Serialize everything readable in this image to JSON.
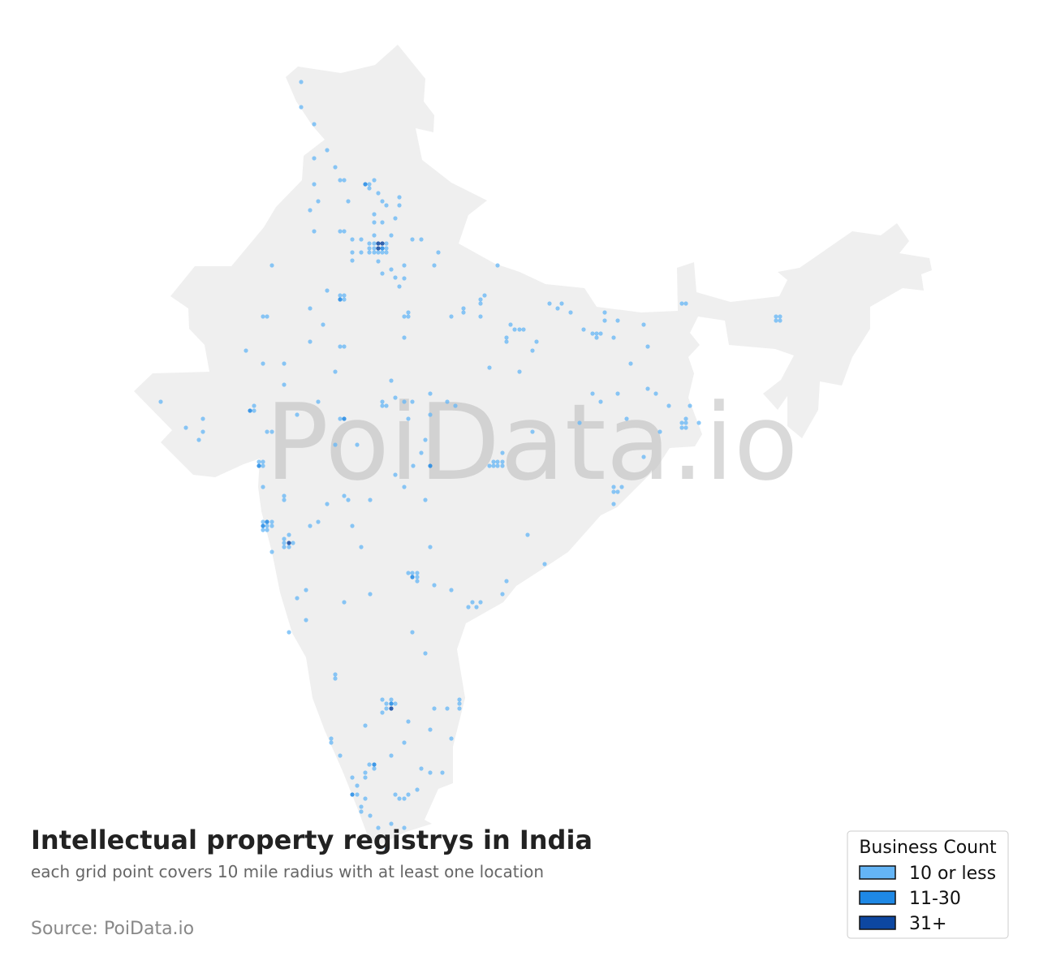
{
  "header": {
    "title": "Intellectual property registrys in India",
    "subtitle": "each grid point covers 10 mile radius with at least one location",
    "source": "Source: PoiData.io",
    "watermark": "PoiData.io"
  },
  "legend": {
    "title": "Business Count",
    "items": [
      {
        "label": "10 or less",
        "color": "#64b5f6"
      },
      {
        "label": "11-30",
        "color": "#1e88e5"
      },
      {
        "label": "31+",
        "color": "#0d47a1"
      }
    ]
  }
}
